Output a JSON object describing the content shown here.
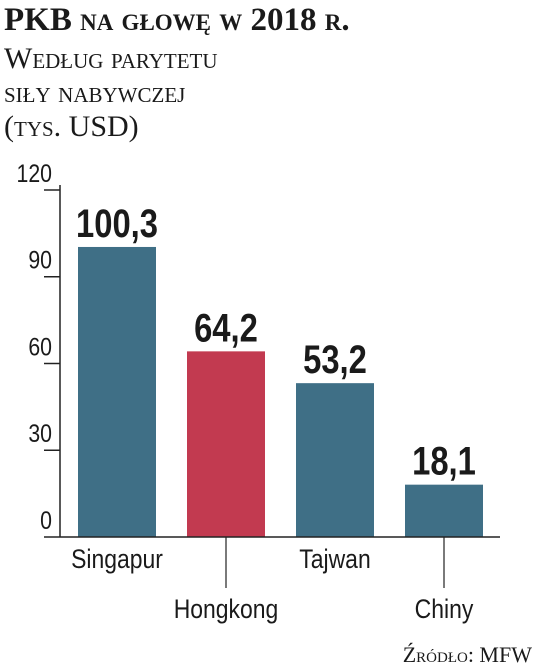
{
  "chart_data": {
    "type": "bar",
    "title": "PKB na głowę w 2018 r.",
    "subtitle": [
      "Według parytetu",
      "siły nabywczej",
      "(tys. USD)"
    ],
    "categories": [
      "Singapur",
      "Hongkong",
      "Tajwan",
      "Chiny"
    ],
    "values": [
      100.3,
      64.2,
      53.2,
      18.1
    ],
    "value_labels": [
      "100,3",
      "64,2",
      "53,2",
      "18,1"
    ],
    "colors": [
      "#3f6f86",
      "#c23a50",
      "#3f6f86",
      "#3f6f86"
    ],
    "ylim": [
      0,
      120
    ],
    "yticks": [
      0,
      30,
      60,
      90,
      120
    ],
    "source": "Źródło: MFW"
  }
}
